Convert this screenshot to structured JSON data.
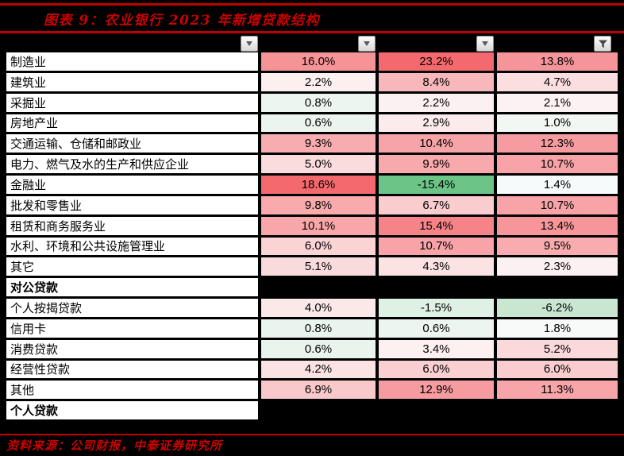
{
  "figure": {
    "label": "图表 9：",
    "title": "农业银行 2023 年新增贷款结构"
  },
  "footer": {
    "source": "资料来源：公司财报，中泰证券研究所"
  },
  "colors": {
    "accent_red": "#C00000",
    "title_red": "#CC0000",
    "background": "#000000",
    "cell_text": "#000000",
    "max_red": "#F4696D",
    "max_green": "#6CC487"
  },
  "filter_bar": {
    "buttons": [
      {
        "icon": "chevron-down",
        "state": "inactive"
      },
      {
        "icon": "chevron-down",
        "state": "inactive"
      },
      {
        "icon": "chevron-down",
        "state": "inactive"
      },
      {
        "icon": "funnel",
        "state": "filtered"
      }
    ]
  },
  "chart_data": {
    "type": "heatmap",
    "title": "农业银行2023年新增贷款结构",
    "unit": "%",
    "value_format": "one_decimal_percent",
    "legend": "red = higher new-loan share, green = negative/lower",
    "rows": [
      {
        "label": "制造业",
        "values": [
          16.0,
          23.2,
          13.8
        ],
        "colors": [
          "#F59397",
          "#F4696D",
          "#F59599"
        ]
      },
      {
        "label": "建筑业",
        "values": [
          2.2,
          8.4,
          4.7
        ],
        "colors": [
          "#FBEFF0",
          "#F8B7BA",
          "#FBDEE0"
        ]
      },
      {
        "label": "采掘业",
        "values": [
          0.8,
          2.2,
          2.1
        ],
        "colors": [
          "#EDF5F0",
          "#FCF1F2",
          "#FCF2F3"
        ]
      },
      {
        "label": "房地产业",
        "values": [
          0.6,
          2.9,
          1.0
        ],
        "colors": [
          "#EBF4EE",
          "#FBEBEC",
          "#F2F7F4"
        ]
      },
      {
        "label": "交通运输、仓储和邮政业",
        "values": [
          9.3,
          10.4,
          12.3
        ],
        "colors": [
          "#F7ACAF",
          "#F7A4A8",
          "#F69CA0"
        ]
      },
      {
        "label": "电力、燃气及水的生产和供应企业",
        "values": [
          5.0,
          9.9,
          10.7
        ],
        "colors": [
          "#FADCDE",
          "#F8A9AC",
          "#F7A3A7"
        ]
      },
      {
        "label": "金融业",
        "values": [
          18.6,
          -15.4,
          1.4
        ],
        "colors": [
          "#F4696D",
          "#6CC487",
          "#F7FAFA"
        ]
      },
      {
        "label": "批发和零售业",
        "values": [
          9.8,
          6.7,
          10.7
        ],
        "colors": [
          "#F8AAAD",
          "#F9CCCE",
          "#F7A3A7"
        ]
      },
      {
        "label": "租赁和商务服务业",
        "values": [
          10.1,
          15.4,
          13.4
        ],
        "colors": [
          "#F7A7AA",
          "#F58387",
          "#F6969A"
        ]
      },
      {
        "label": "水利、环境和公共设施管理业",
        "values": [
          6.0,
          10.7,
          9.5
        ],
        "colors": [
          "#FAD3D5",
          "#F7A3A7",
          "#F8ACAF"
        ]
      },
      {
        "label": "其它",
        "values": [
          5.1,
          4.3,
          2.3
        ],
        "colors": [
          "#FADBDD",
          "#FBE3E4",
          "#FCF1F2"
        ]
      },
      {
        "label": "对公贷款",
        "section": true
      },
      {
        "label": "个人按揭贷款",
        "values": [
          4.0,
          -1.5,
          -6.2
        ],
        "colors": [
          "#FBE9EA",
          "#DFF0E5",
          "#C9E6D1"
        ]
      },
      {
        "label": "信用卡",
        "values": [
          0.8,
          0.6,
          1.8
        ],
        "colors": [
          "#EAF4EE",
          "#ECF5F0",
          "#F7FAF9"
        ]
      },
      {
        "label": "消费贷款",
        "values": [
          0.6,
          3.4,
          5.2
        ],
        "colors": [
          "#E9F4ED",
          "#FDF0F1",
          "#FBD9DB"
        ]
      },
      {
        "label": "经营性贷款",
        "values": [
          4.2,
          6.0,
          6.0
        ],
        "colors": [
          "#FBE2E3",
          "#F9CFD2",
          "#F9CDD0"
        ]
      },
      {
        "label": "其他",
        "values": [
          6.9,
          12.9,
          11.3
        ],
        "colors": [
          "#F9C8CB",
          "#F69B9F",
          "#F7A5A9"
        ]
      },
      {
        "label": "个人贷款",
        "section": true
      }
    ]
  }
}
